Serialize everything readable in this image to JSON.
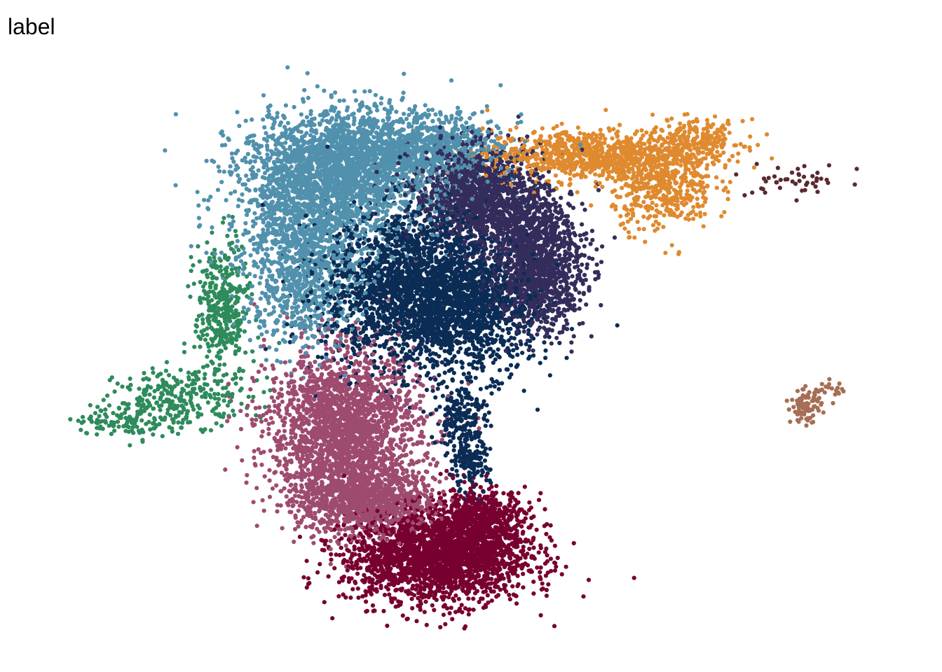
{
  "title": "label",
  "chart_data": {
    "type": "scatter",
    "title": "label",
    "xlabel": "",
    "ylabel": "",
    "axes_visible": false,
    "grid": false,
    "legend": "none",
    "xlim": [
      0,
      100
    ],
    "ylim": [
      0,
      100
    ],
    "seed": 7,
    "series": [
      {
        "color": "#5191ad",
        "approx_points": 4200,
        "clusters": [
          {
            "x": 33.0,
            "y": 79.0,
            "sx": 5.5,
            "sy": 6.0,
            "w": 0.45
          },
          {
            "x": 40.0,
            "y": 85.0,
            "sx": 6.5,
            "sy": 3.8,
            "w": 0.3
          },
          {
            "x": 30.0,
            "y": 64.0,
            "sx": 3.5,
            "sy": 6.5,
            "w": 0.2
          },
          {
            "x": 47.0,
            "y": 86.0,
            "sx": 3.5,
            "sy": 2.5,
            "w": 0.05
          }
        ]
      },
      {
        "color": "#0b2c55",
        "approx_points": 3400,
        "clusters": [
          {
            "x": 44.0,
            "y": 61.0,
            "sx": 5.5,
            "sy": 7.0,
            "w": 0.75
          },
          {
            "x": 51.0,
            "y": 56.0,
            "sx": 3.5,
            "sy": 5.0,
            "w": 0.15
          },
          {
            "x": 49.0,
            "y": 38.0,
            "sx": 1.5,
            "sy": 3.5,
            "w": 0.06
          },
          {
            "x": 50.0,
            "y": 30.0,
            "sx": 1.2,
            "sy": 2.5,
            "w": 0.04
          }
        ]
      },
      {
        "color": "#342d5c",
        "approx_points": 2600,
        "clusters": [
          {
            "x": 51.0,
            "y": 78.0,
            "sx": 4.0,
            "sy": 4.0,
            "w": 0.45
          },
          {
            "x": 58.0,
            "y": 64.0,
            "sx": 2.8,
            "sy": 5.0,
            "w": 0.4
          },
          {
            "x": 56.0,
            "y": 72.0,
            "sx": 3.0,
            "sy": 3.0,
            "w": 0.15
          }
        ]
      },
      {
        "color": "#df8a2f",
        "approx_points": 1500,
        "clusters": [
          {
            "x": 64.0,
            "y": 84.5,
            "sx": 6.0,
            "sy": 2.2,
            "w": 0.55
          },
          {
            "x": 73.0,
            "y": 79.0,
            "sx": 3.0,
            "sy": 3.8,
            "w": 0.3
          },
          {
            "x": 77.0,
            "y": 87.0,
            "sx": 2.8,
            "sy": 1.8,
            "w": 0.15
          }
        ]
      },
      {
        "color": "#5a2a30",
        "approx_points": 45,
        "clusters": [
          {
            "x": 89.0,
            "y": 80.0,
            "sx": 3.0,
            "sy": 1.5,
            "w": 1.0
          }
        ]
      },
      {
        "color": "#2e8b5c",
        "approx_points": 750,
        "clusters": [
          {
            "x": 20.5,
            "y": 57.0,
            "sx": 1.6,
            "sy": 6.0,
            "w": 0.5
          },
          {
            "x": 16.0,
            "y": 42.0,
            "sx": 4.0,
            "sy": 2.5,
            "w": 0.35
          },
          {
            "x": 9.0,
            "y": 38.0,
            "sx": 3.0,
            "sy": 1.5,
            "w": 0.15
          }
        ]
      },
      {
        "color": "#9e4b70",
        "approx_points": 3200,
        "clusters": [
          {
            "x": 35.0,
            "y": 36.0,
            "sx": 4.5,
            "sy": 7.0,
            "w": 0.7
          },
          {
            "x": 38.0,
            "y": 24.0,
            "sx": 4.0,
            "sy": 3.0,
            "w": 0.3
          }
        ]
      },
      {
        "color": "#780030",
        "approx_points": 2800,
        "clusters": [
          {
            "x": 46.0,
            "y": 14.0,
            "sx": 5.5,
            "sy": 4.0,
            "w": 0.75
          },
          {
            "x": 51.0,
            "y": 20.0,
            "sx": 3.0,
            "sy": 3.0,
            "w": 0.25
          }
        ]
      },
      {
        "color": "#a66e55",
        "approx_points": 110,
        "clusters": [
          {
            "x": 90.0,
            "y": 40.5,
            "sx": 0.9,
            "sy": 1.4,
            "w": 0.85
          },
          {
            "x": 93.0,
            "y": 43.5,
            "sx": 0.8,
            "sy": 0.6,
            "w": 0.15
          }
        ]
      }
    ]
  }
}
